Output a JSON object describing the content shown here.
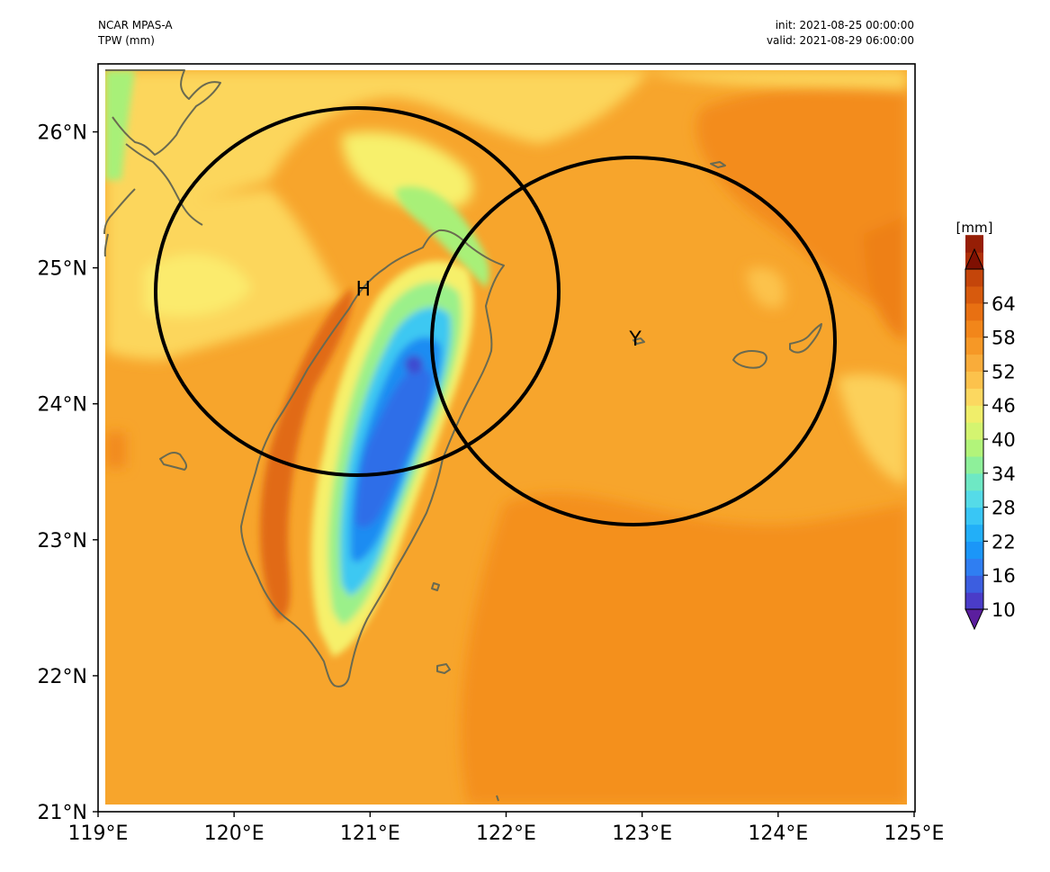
{
  "header": {
    "model": "NCAR MPAS-A",
    "variable": "TPW (mm)",
    "init": "init: 2021-08-25 00:00:00",
    "valid": "valid: 2021-08-29 06:00:00"
  },
  "map": {
    "lon_range": [
      119,
      125
    ],
    "lat_range": [
      21,
      26.5
    ],
    "lon_ticks": [
      119,
      120,
      121,
      122,
      123,
      124,
      125
    ],
    "lon_tick_labels": [
      "119°E",
      "120°E",
      "121°E",
      "122°E",
      "123°E",
      "124°E",
      "125°E"
    ],
    "lat_ticks": [
      21,
      22,
      23,
      24,
      25,
      26
    ],
    "lat_tick_labels": [
      "21°N",
      "22°N",
      "23°N",
      "24°N",
      "25°N",
      "26°N"
    ],
    "storms": [
      {
        "label": "H",
        "lon": 120.95,
        "lat": 24.85
      },
      {
        "label": "Y",
        "lon": 122.95,
        "lat": 24.48
      }
    ]
  },
  "colorbar": {
    "unit": "[mm]",
    "min": 10,
    "max": 70,
    "step": 3,
    "ticks": [
      10,
      16,
      22,
      28,
      34,
      40,
      46,
      52,
      58,
      64
    ],
    "tick_labels": [
      "10",
      "16",
      "22",
      "28",
      "34",
      "40",
      "46",
      "52",
      "58",
      "64"
    ],
    "extend": "both",
    "colors": [
      "#5b1e9e",
      "#4a3cc8",
      "#3c5ee0",
      "#2f7ef2",
      "#1b96f8",
      "#22aff8",
      "#39c6f5",
      "#55dbe8",
      "#6ee8c4",
      "#8ef09a",
      "#b2f47a",
      "#d4f470",
      "#f0ee6a",
      "#fcd860",
      "#fcc24c",
      "#f9ac3a",
      "#f69826",
      "#f2861a",
      "#e87012",
      "#d75a0d",
      "#c4450a",
      "#ad2f07",
      "#961e05",
      "#7e1002"
    ]
  },
  "colors": {
    "ocean_base": "#f7a52c",
    "land_outline": "#6a6a50",
    "circle": "#000000"
  }
}
